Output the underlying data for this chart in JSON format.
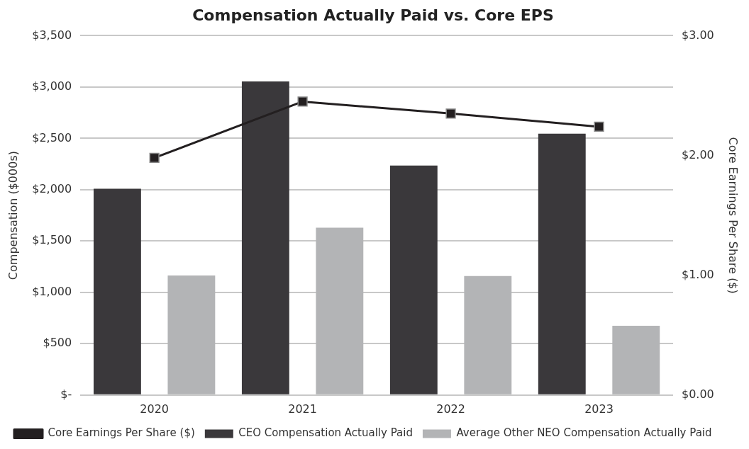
{
  "chart_data": {
    "type": "bar",
    "title": "Compensation Actually Paid vs. Core EPS",
    "ylabel": "Compensation ($000s)",
    "y2label": "Core Earnings Per Share ($)",
    "categories": [
      "2020",
      "2021",
      "2022",
      "2023"
    ],
    "series": [
      {
        "name": "CEO Compensation Actually Paid",
        "color": "#3a383b",
        "values": [
          2010,
          3055,
          2235,
          2545
        ]
      },
      {
        "name": "Average Other NEO Compensation Actually Paid",
        "color": "#b3b4b6",
        "values": [
          1165,
          1630,
          1160,
          675
        ]
      },
      {
        "name": "Core Earnings Per Share ($)",
        "type": "line",
        "axis": "y2",
        "color": "#231f20",
        "values": [
          1.98,
          2.45,
          2.35,
          2.24
        ]
      }
    ],
    "ylim": [
      0,
      3500
    ],
    "yticks": [
      {
        "value": 0,
        "label": "$-"
      },
      {
        "value": 500,
        "label": "$500"
      },
      {
        "value": 1000,
        "label": "$1,000"
      },
      {
        "value": 1500,
        "label": "$1,500"
      },
      {
        "value": 2000,
        "label": "$2,000"
      },
      {
        "value": 2500,
        "label": "$2,500"
      },
      {
        "value": 3000,
        "label": "$3,000"
      },
      {
        "value": 3500,
        "label": "$3,500"
      }
    ],
    "y2lim": [
      0,
      3
    ],
    "y2ticks": [
      {
        "value": 0,
        "label": "$0.00"
      },
      {
        "value": 1,
        "label": "$1.00"
      },
      {
        "value": 2,
        "label": "$2.00"
      },
      {
        "value": 3,
        "label": "$3.00"
      }
    ],
    "grid": "y",
    "legend": "bottom",
    "marker": "square",
    "line_style": "solid"
  }
}
